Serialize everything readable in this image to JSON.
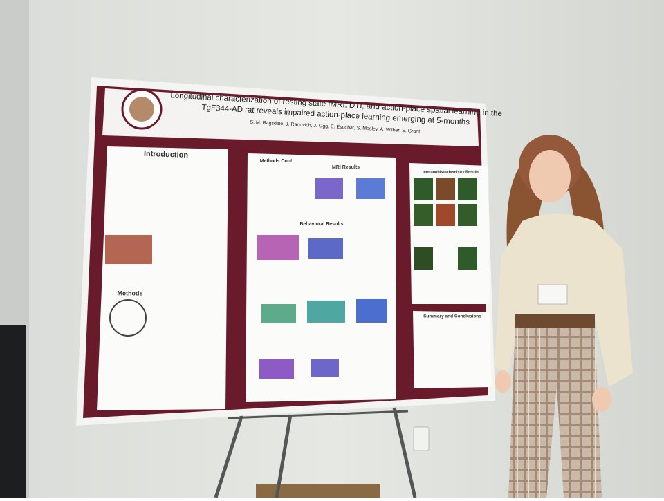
{
  "poster": {
    "title_lines": [
      "Longitudinal characterization of resting state fMRI, DTI, and action-place spatial learning in the",
      "TgF344-AD rat reveals impaired action-place learning emerging at 5-months"
    ],
    "authors": "S. M. Ragsdale, J. Radovich, J. Ogg, E. Escobar, S. Mosley, A. Wilber, S. Grant",
    "sections": [
      "Introduction",
      "Methods",
      "Methods Cont.",
      "MRI Results",
      "Behavioral Results",
      "Immunohistochemistry Results",
      "Summary and Conclusions"
    ]
  }
}
